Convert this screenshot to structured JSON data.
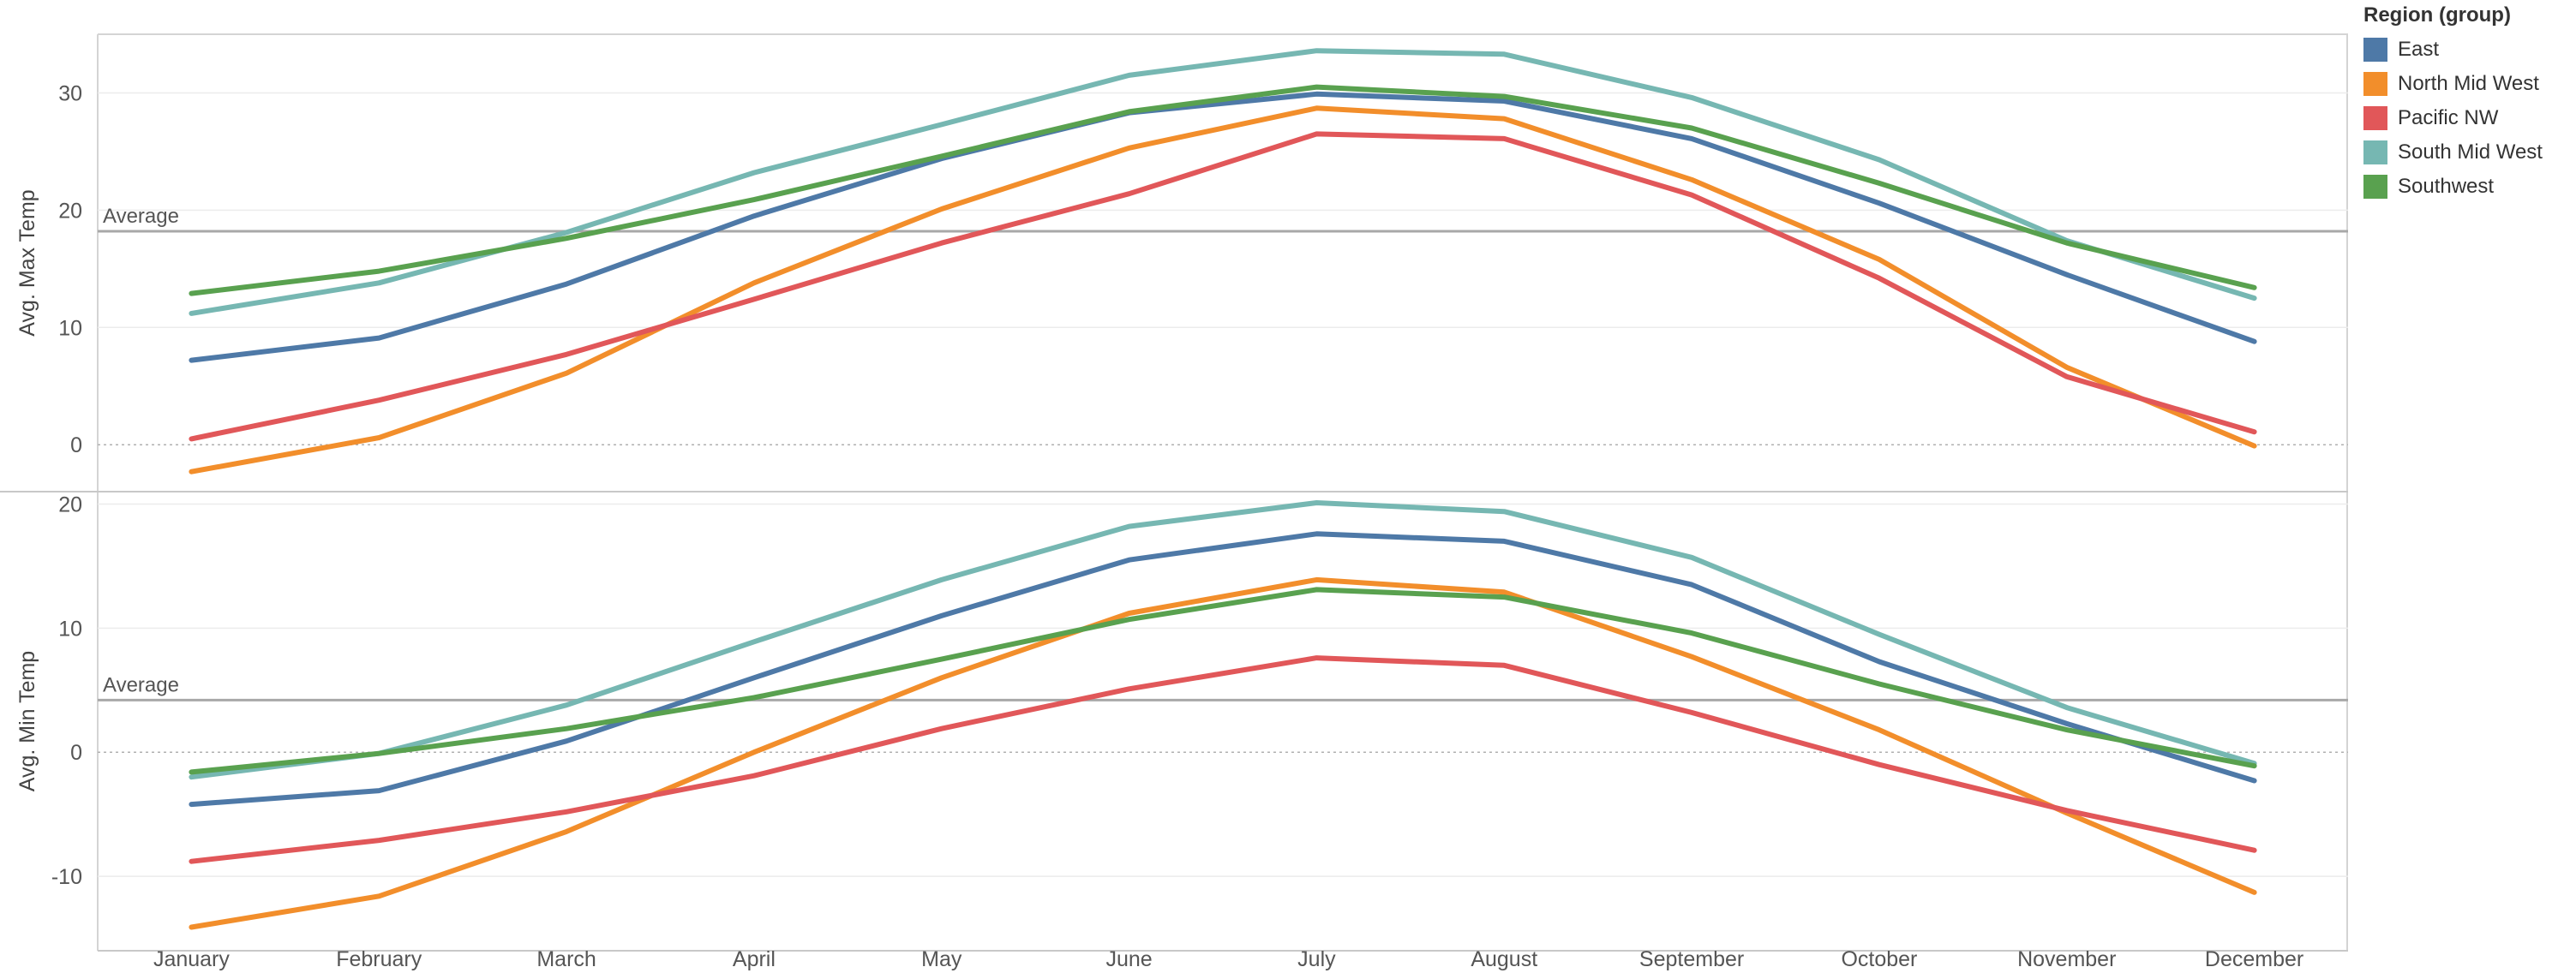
{
  "legend": {
    "title": "Region (group)"
  },
  "chart_data": {
    "type": "line",
    "categories": [
      "January",
      "February",
      "March",
      "April",
      "May",
      "June",
      "July",
      "August",
      "September",
      "October",
      "November",
      "December"
    ],
    "legend_placement": "right",
    "grid": true,
    "series_meta": [
      {
        "name": "East",
        "color": "#4e79a7"
      },
      {
        "name": "North Mid West",
        "color": "#f28e2b"
      },
      {
        "name": "Pacific NW",
        "color": "#e15759"
      },
      {
        "name": "South Mid West",
        "color": "#76b7b2"
      },
      {
        "name": "Southwest",
        "color": "#59a14f"
      }
    ],
    "panels": [
      {
        "ylabel": "Avg. Max Temp",
        "ylim": [
          -4,
          35
        ],
        "yticks": [
          0,
          10,
          20,
          30
        ],
        "reference_line": {
          "label": "Average",
          "value": 18.2
        },
        "series": [
          {
            "name": "East",
            "values": [
              7.2,
              9.1,
              13.7,
              19.5,
              24.4,
              28.3,
              29.9,
              29.3,
              26.1,
              20.6,
              14.5,
              8.8
            ]
          },
          {
            "name": "North Mid West",
            "values": [
              -2.3,
              0.6,
              6.1,
              13.8,
              20.1,
              25.3,
              28.7,
              27.8,
              22.6,
              15.8,
              6.6,
              -0.1
            ]
          },
          {
            "name": "Pacific NW",
            "values": [
              0.5,
              3.8,
              7.7,
              12.4,
              17.2,
              21.4,
              26.5,
              26.1,
              21.3,
              14.2,
              5.8,
              1.1
            ]
          },
          {
            "name": "South Mid West",
            "values": [
              11.2,
              13.8,
              18.1,
              23.2,
              27.3,
              31.5,
              33.6,
              33.3,
              29.6,
              24.3,
              17.4,
              12.5
            ]
          },
          {
            "name": "Southwest",
            "values": [
              12.9,
              14.8,
              17.6,
              20.9,
              24.6,
              28.4,
              30.5,
              29.7,
              27.0,
              22.3,
              17.2,
              13.4
            ]
          }
        ]
      },
      {
        "ylabel": "Avg. Min Temp",
        "ylim": [
          -16,
          21
        ],
        "yticks": [
          -10,
          0,
          10,
          20
        ],
        "reference_line": {
          "label": "Average",
          "value": 4.2
        },
        "series": [
          {
            "name": "East",
            "values": [
              -4.2,
              -3.1,
              0.9,
              6.0,
              11.0,
              15.5,
              17.6,
              17.0,
              13.5,
              7.3,
              2.3,
              -2.3
            ]
          },
          {
            "name": "North Mid West",
            "values": [
              -14.1,
              -11.6,
              -6.4,
              0.0,
              6.0,
              11.2,
              13.9,
              12.9,
              7.7,
              1.8,
              -4.9,
              -11.3
            ]
          },
          {
            "name": "Pacific NW",
            "values": [
              -8.8,
              -7.1,
              -4.8,
              -1.9,
              1.9,
              5.1,
              7.6,
              7.0,
              3.2,
              -1.0,
              -4.7,
              -7.9
            ]
          },
          {
            "name": "South Mid West",
            "values": [
              -2.0,
              -0.1,
              3.8,
              8.9,
              13.9,
              18.2,
              20.1,
              19.4,
              15.7,
              9.5,
              3.6,
              -0.9
            ]
          },
          {
            "name": "Southwest",
            "values": [
              -1.6,
              -0.1,
              1.9,
              4.4,
              7.5,
              10.7,
              13.1,
              12.5,
              9.6,
              5.5,
              1.8,
              -1.1
            ]
          }
        ]
      }
    ]
  }
}
